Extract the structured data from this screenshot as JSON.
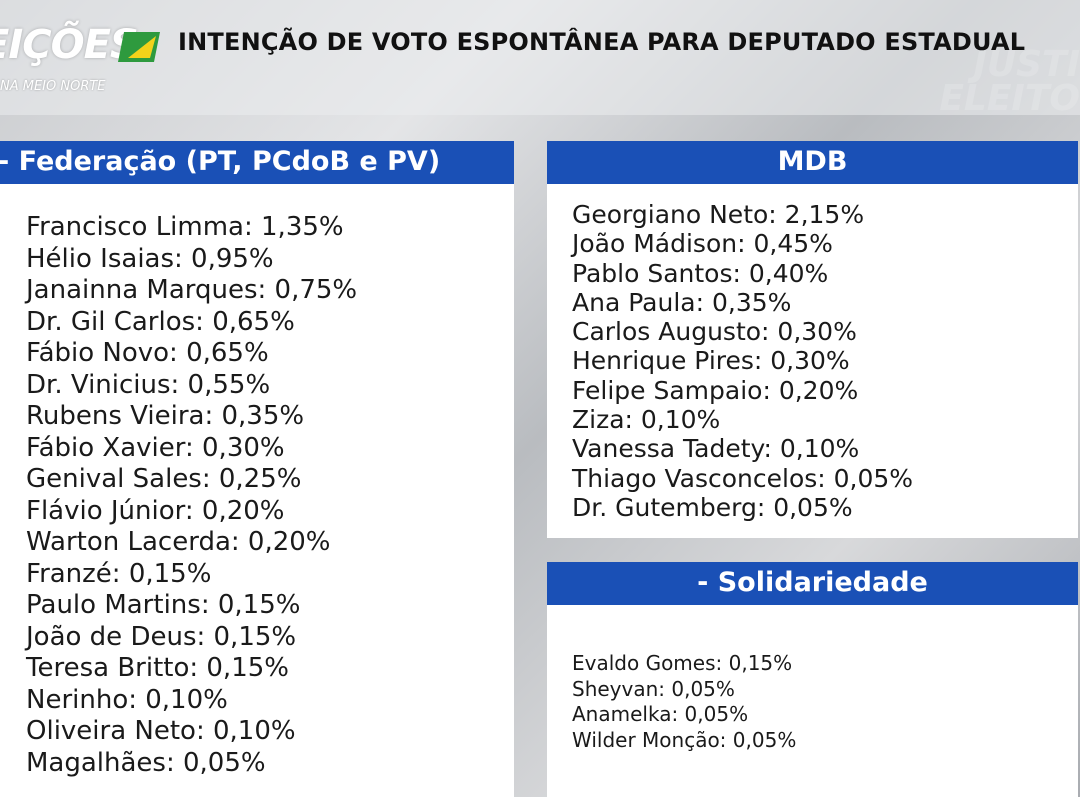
{
  "header": {
    "logo_text": "ELEIÇÕES",
    "logo_visible": "EIÇÕES",
    "logo_sub": "NA MEIO NORTE",
    "title": "INTENÇÃO DE VOTO ESPONTÂNEA PARA DEPUTADO ESTADUAL"
  },
  "background": {
    "text_lines": [
      "JUSTI",
      "ELEITO"
    ]
  },
  "colors": {
    "panel_header": "#1a50b6",
    "panel_body": "#ffffff",
    "flag_green": "#2e9a3e",
    "flag_yellow": "#f3d21a"
  },
  "panels": {
    "federacao": {
      "title": "- Federação (PT, PCdoB e PV)",
      "items": [
        "Francisco Limma: 1,35%",
        "Hélio Isaias: 0,95%",
        "Janainna Marques: 0,75%",
        "Dr. Gil Carlos: 0,65%",
        "Fábio Novo: 0,65%",
        "Dr. Vinicius: 0,55%",
        "Rubens Vieira: 0,35%",
        "Fábio Xavier: 0,30%",
        "Genival Sales: 0,25%",
        "Flávio Júnior: 0,20%",
        "Warton Lacerda: 0,20%",
        "Franzé: 0,15%",
        "Paulo Martins: 0,15%",
        "João de Deus: 0,15%",
        "Teresa Britto: 0,15%",
        "Nerinho: 0,10%",
        "Oliveira Neto: 0,10%",
        "Magalhães: 0,05%"
      ]
    },
    "mdb": {
      "title": "MDB",
      "items": [
        "Georgiano Neto: 2,15%",
        "João Mádison: 0,45%",
        "Pablo Santos: 0,40%",
        "Ana Paula: 0,35%",
        "Carlos Augusto: 0,30%",
        "Henrique Pires: 0,30%",
        "Felipe Sampaio: 0,20%",
        "Ziza: 0,10%",
        "Vanessa Tadety: 0,10%",
        "Thiago Vasconcelos: 0,05%",
        "Dr. Gutemberg: 0,05%"
      ]
    },
    "solidariedade": {
      "title": "- Solidariedade",
      "items": [
        "Evaldo Gomes: 0,15%",
        "Sheyvan: 0,05%",
        "Anamelka: 0,05%",
        "Wilder Monção: 0,05%"
      ]
    }
  }
}
